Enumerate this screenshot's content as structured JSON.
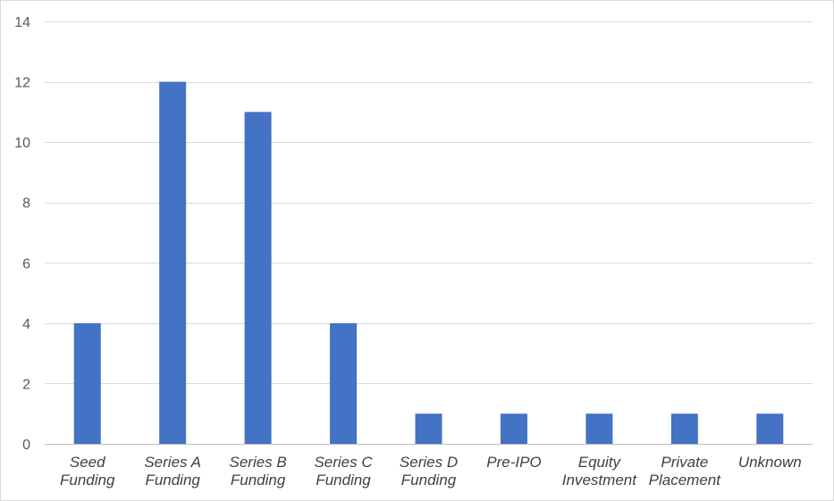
{
  "chart_data": {
    "type": "bar",
    "title": "",
    "xlabel": "",
    "ylabel": "",
    "categories": [
      [
        "Seed",
        "Funding"
      ],
      [
        "Series A",
        "Funding"
      ],
      [
        "Series B",
        "Funding"
      ],
      [
        "Series C",
        "Funding"
      ],
      [
        "Series D",
        "Funding"
      ],
      [
        "Pre-IPO"
      ],
      [
        "Equity",
        "Investment"
      ],
      [
        "Private",
        "Placement"
      ],
      [
        "Unknown"
      ]
    ],
    "values": [
      4,
      12,
      11,
      4,
      1,
      1,
      1,
      1,
      1
    ],
    "ylim": [
      0,
      14
    ],
    "yticks": [
      0,
      2,
      4,
      6,
      8,
      10,
      12,
      14
    ],
    "grid": true,
    "legend": "none",
    "colors": {
      "bar": "#4472c4",
      "grid": "#d9d9d9",
      "axis": "#bfbfbf",
      "tick_text": "#595959",
      "category_text": "#404040"
    }
  }
}
